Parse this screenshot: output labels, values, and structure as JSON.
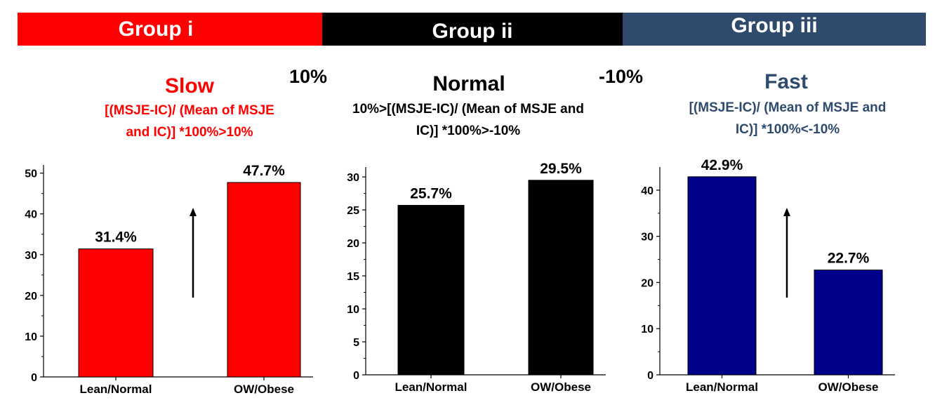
{
  "header": {
    "bands": [
      {
        "label": "Group i",
        "color": "#ff0000"
      },
      {
        "label": "Group ii",
        "color": "#000000"
      },
      {
        "label": "Group iii",
        "color": "#2e4a6d"
      }
    ],
    "thresholds": [
      "10%",
      "-10%"
    ]
  },
  "panels": [
    {
      "title": "Slow",
      "description": "[(MSJE-IC)/ (Mean of MSJE\nand IC)] *100%>10%",
      "color": "#ff0000"
    },
    {
      "title": "Normal",
      "description": "10%>[(MSJE-IC)/ (Mean of MSJE and\nIC)] *100%>-10%",
      "color": "#000000"
    },
    {
      "title": "Fast",
      "description": "[(MSJE-IC)/ (Mean of MSJE and\nIC)] *100%<-10%",
      "color": "#2e4a6d"
    }
  ],
  "chart_data": [
    {
      "type": "bar",
      "categories": [
        "Lean/Normal",
        "OW/Obese"
      ],
      "values": [
        31.4,
        47.7
      ],
      "value_labels": [
        "31.4%",
        "47.7%"
      ],
      "ylim": [
        0,
        52
      ],
      "yticks": [
        0,
        10,
        20,
        30,
        40,
        50
      ],
      "bar_color": "#ff0000",
      "arrow": "up"
    },
    {
      "type": "bar",
      "categories": [
        "Lean/Normal",
        "OW/Obese"
      ],
      "values": [
        25.7,
        29.5
      ],
      "value_labels": [
        "25.7%",
        "29.5%"
      ],
      "ylim": [
        0,
        31.5
      ],
      "yticks": [
        0,
        5,
        10,
        15,
        20,
        25,
        30
      ],
      "bar_color": "#000000",
      "arrow": "none"
    },
    {
      "type": "bar",
      "categories": [
        "Lean/Normal",
        "OW/Obese"
      ],
      "values": [
        42.9,
        22.7
      ],
      "value_labels": [
        "42.9%",
        "22.7%"
      ],
      "ylim": [
        0,
        45
      ],
      "yticks": [
        0,
        10,
        20,
        30,
        40
      ],
      "bar_color": "#00008b",
      "arrow": "up"
    }
  ]
}
